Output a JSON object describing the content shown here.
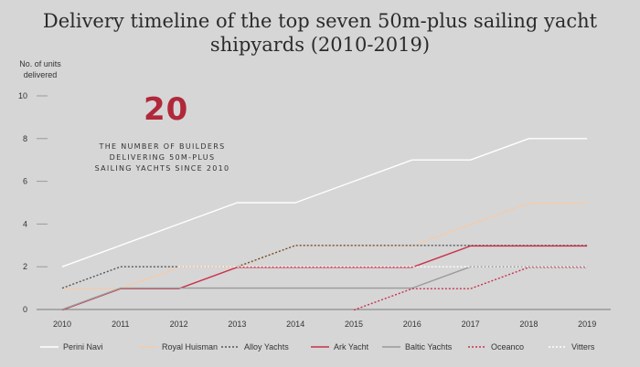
{
  "chart_data": {
    "type": "line",
    "title": "Delivery timeline of the top seven 50m-plus sailing yacht shipyards (2010-2019)",
    "ylabel": "No. of units delivered",
    "xlabel": "",
    "x": [
      2010,
      2011,
      2012,
      2013,
      2014,
      2015,
      2016,
      2017,
      2018,
      2019
    ],
    "ylim": [
      0,
      10
    ],
    "yticks": [
      0,
      2,
      4,
      6,
      8,
      10
    ],
    "grid": false,
    "legend_position": "bottom",
    "annotation": {
      "number": "20",
      "text": "THE NUMBER OF BUILDERS DELIVERING 50M-PLUS SAILING YACHTS SINCE 2010"
    },
    "series": [
      {
        "name": "Perini Navi",
        "color": "#ffffff",
        "dash": "solid",
        "values": [
          2,
          3,
          4,
          5,
          5,
          6,
          7,
          7,
          8,
          8
        ]
      },
      {
        "name": "Royal Huisman",
        "color": "#f2ccad",
        "dash": "solid",
        "values": [
          1,
          1,
          2,
          2,
          3,
          3,
          3,
          4,
          5,
          5
        ]
      },
      {
        "name": "Alloy Yachts",
        "color": "#555555",
        "dash": "dotted",
        "values": [
          1,
          2,
          2,
          2,
          3,
          3,
          3,
          3,
          3,
          3
        ]
      },
      {
        "name": "Ark Yacht",
        "color": "#c9314a",
        "dash": "solid",
        "values": [
          0,
          1,
          1,
          2,
          2,
          2,
          2,
          3,
          3,
          3
        ]
      },
      {
        "name": "Baltic Yachts",
        "color": "#9a9a9a",
        "dash": "solid",
        "values": [
          0,
          1,
          1,
          1,
          1,
          1,
          1,
          2,
          2,
          2
        ]
      },
      {
        "name": "Oceanco",
        "color": "#c9314a",
        "dash": "dotted",
        "values": [
          null,
          null,
          null,
          null,
          null,
          0,
          1,
          1,
          2,
          2
        ]
      },
      {
        "name": "Vitters",
        "color": "#ffffff",
        "dash": "dotted",
        "values": [
          null,
          null,
          2,
          2,
          2,
          2,
          2,
          2,
          2,
          2
        ]
      }
    ]
  }
}
